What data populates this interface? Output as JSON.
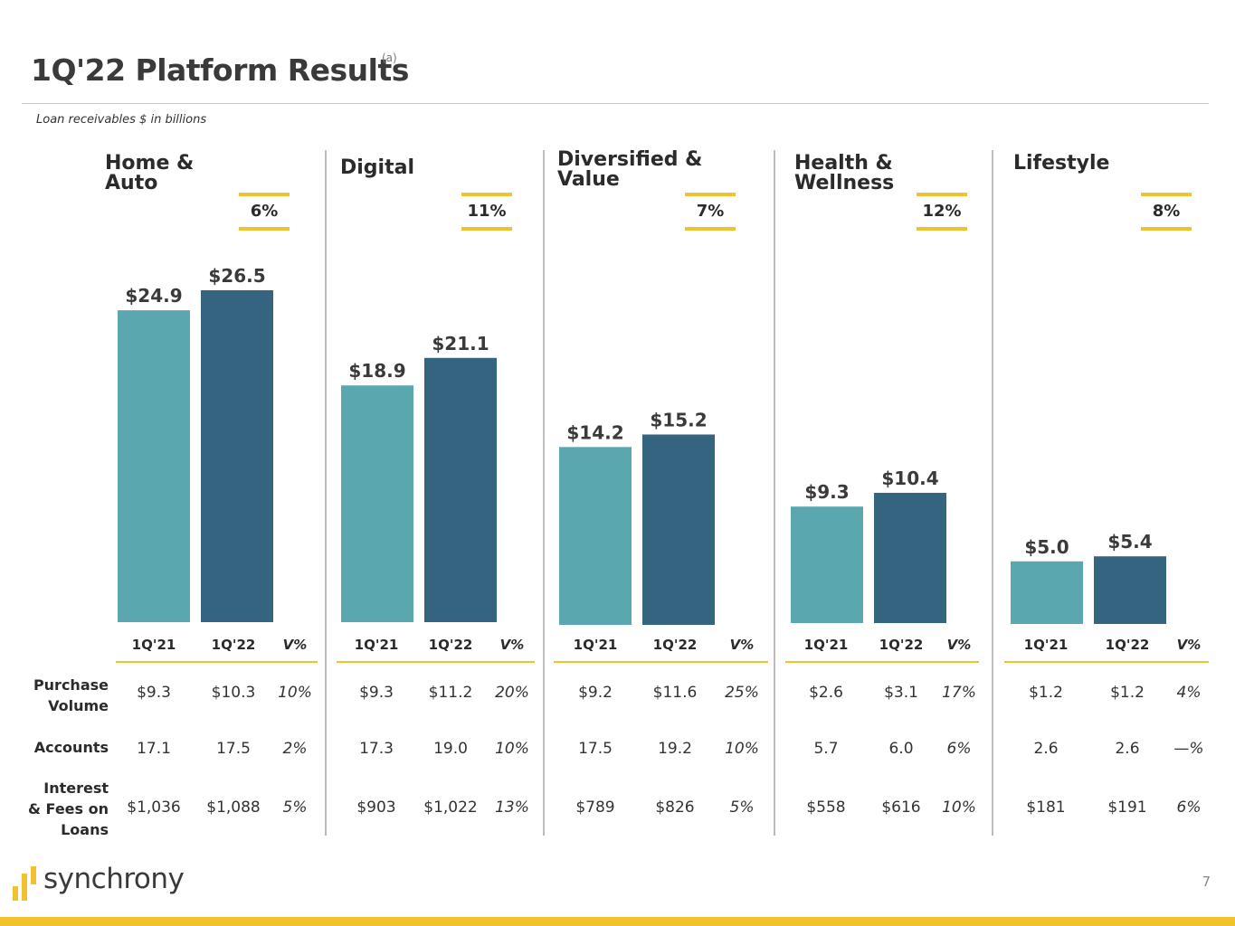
{
  "page": {
    "title": "1Q'22 Platform Results",
    "footnote_mark": "(a)",
    "subtitle": "Loan receivables $ in billions",
    "page_number": "7",
    "logo_text": "synchrony"
  },
  "colors": {
    "bar_1q21": "#5aa7af",
    "bar_1q22": "#356480",
    "accent": "#f2c12e"
  },
  "table": {
    "col_1q21": "1Q'21",
    "col_1q22": "1Q'22",
    "col_var": "V%",
    "row_labels": [
      "Purchase\nVolume",
      "Accounts",
      "Interest\n& Fees on\nLoans"
    ]
  },
  "panels": [
    {
      "title": "Home &\nAuto",
      "growth": "6%",
      "bar_labels": [
        "$24.9",
        "$26.5"
      ],
      "rows": [
        [
          "$9.3",
          "$10.3",
          "10%"
        ],
        [
          "17.1",
          "17.5",
          "2%"
        ],
        [
          "$1,036",
          "$1,088",
          "5%"
        ]
      ]
    },
    {
      "title": "Digital",
      "growth": "11%",
      "bar_labels": [
        "$18.9",
        "$21.1"
      ],
      "rows": [
        [
          "$9.3",
          "$11.2",
          "20%"
        ],
        [
          "17.3",
          "19.0",
          "10%"
        ],
        [
          "$903",
          "$1,022",
          "13%"
        ]
      ]
    },
    {
      "title": "Diversified &\nValue",
      "growth": "7%",
      "bar_labels": [
        "$14.2",
        "$15.2"
      ],
      "rows": [
        [
          "$9.2",
          "$11.6",
          "25%"
        ],
        [
          "17.5",
          "19.2",
          "10%"
        ],
        [
          "$789",
          "$826",
          "5%"
        ]
      ]
    },
    {
      "title": "Health &\nWellness",
      "growth": "12%",
      "bar_labels": [
        "$9.3",
        "$10.4"
      ],
      "rows": [
        [
          "$2.6",
          "$3.1",
          "17%"
        ],
        [
          "5.7",
          "6.0",
          "6%"
        ],
        [
          "$558",
          "$616",
          "10%"
        ]
      ]
    },
    {
      "title": "Lifestyle",
      "growth": "8%",
      "bar_labels": [
        "$5.0",
        "$5.4"
      ],
      "rows": [
        [
          "$1.2",
          "$1.2",
          "4%"
        ],
        [
          "2.6",
          "2.6",
          "—%"
        ],
        [
          "$181",
          "$191",
          "6%"
        ]
      ]
    }
  ],
  "chart_data": {
    "type": "bar",
    "categories": [
      "Home & Auto",
      "Digital",
      "Diversified & Value",
      "Health & Wellness",
      "Lifestyle"
    ],
    "series": [
      {
        "name": "1Q'21",
        "values": [
          24.9,
          18.9,
          14.2,
          9.3,
          5.0
        ]
      },
      {
        "name": "1Q'22",
        "values": [
          26.5,
          21.1,
          15.2,
          10.4,
          5.4
        ]
      }
    ],
    "growth": [
      "6%",
      "11%",
      "7%",
      "12%",
      "8%"
    ],
    "title": "1Q'22 Platform Results",
    "subtitle": "Loan receivables $ in billions"
  }
}
